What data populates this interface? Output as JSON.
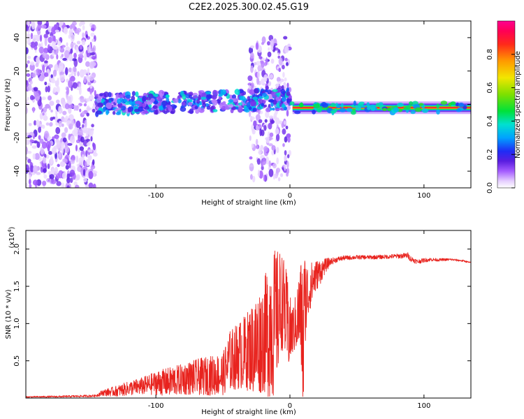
{
  "title": "C2E2.2025.300.02.45.G19",
  "chart_data": [
    {
      "type": "heatmap",
      "panel": "spectrogram",
      "xlabel": "Height of straight line (km)",
      "ylabel": "Frequency (Hz)",
      "xlim": [
        -197,
        135
      ],
      "ylim": [
        -50,
        50
      ],
      "xticks": [
        -100,
        0,
        100
      ],
      "xtick_labels": [
        "-100",
        "0",
        "100"
      ],
      "yticks": [
        -40,
        -20,
        0,
        20,
        40
      ],
      "ytick_labels": [
        "-40",
        "-20",
        "0",
        "20",
        "40"
      ],
      "colorbar": {
        "label": "Normalized spectral amplitude",
        "range": [
          0,
          1
        ],
        "ticks": [
          0.0,
          0.2,
          0.4,
          0.6,
          0.8
        ],
        "tick_labels": [
          "0.0",
          "0.2",
          "0.4",
          "0.6",
          "0.8"
        ]
      },
      "regions": [
        {
          "name": "noise",
          "x_range": [
            -197,
            -145
          ],
          "freq_range": [
            -50,
            50
          ],
          "amplitude": 0.1
        },
        {
          "name": "scattered-band",
          "x_range": [
            -145,
            0
          ],
          "freq_center": 0,
          "freq_halfwidth": 6,
          "amplitude": 0.3
        },
        {
          "name": "spread-bursts",
          "x_range": [
            -30,
            0
          ],
          "freq_range": [
            -45,
            40
          ],
          "amplitude": 0.1
        },
        {
          "name": "stable-tone",
          "x_range": [
            0,
            135
          ],
          "freq_center": -2,
          "freq_halfwidth": 2,
          "amplitude": 0.9
        }
      ]
    },
    {
      "type": "line",
      "panel": "snr",
      "xlabel": "Height of straight line (km)",
      "ylabel": "SNR (10 * v/v)",
      "multiplier_label": "(x10",
      "multiplier_exp": "4",
      "xlim": [
        -197,
        135
      ],
      "ylim": [
        0,
        22500
      ],
      "xticks": [
        -100,
        0,
        100
      ],
      "xtick_labels": [
        "-100",
        "0",
        "100"
      ],
      "yticks": [
        5000,
        10000,
        15000,
        20000
      ],
      "ytick_labels": [
        "0.5",
        "1.0",
        "1.5",
        "2.0"
      ],
      "color": "#e8231e",
      "series": [
        {
          "name": "SNR",
          "x": [
            -197,
            -170,
            -145,
            -140,
            -130,
            -120,
            -110,
            -100,
            -90,
            -80,
            -70,
            -60,
            -50,
            -45,
            -40,
            -35,
            -30,
            -25,
            -20,
            -17,
            -15,
            -12,
            -10,
            -8,
            -6,
            -4,
            -2,
            0,
            2,
            5,
            8,
            10,
            11,
            13,
            15,
            18,
            20,
            23,
            25,
            28,
            30,
            35,
            40,
            50,
            60,
            70,
            80,
            85,
            88,
            90,
            95,
            100,
            105,
            110,
            120,
            130,
            135
          ],
          "base": [
            150,
            200,
            300,
            700,
            900,
            1300,
            1600,
            2000,
            2200,
            2500,
            2800,
            3000,
            3200,
            5000,
            5500,
            6000,
            6500,
            7000,
            8000,
            9000,
            9500,
            10000,
            11000,
            12000,
            13000,
            12000,
            10000,
            9000,
            9000,
            10500,
            12000,
            7000,
            13000,
            14000,
            15000,
            16000,
            16500,
            17000,
            17500,
            18000,
            18300,
            18600,
            18800,
            18900,
            18900,
            18950,
            19050,
            19100,
            19150,
            18700,
            18300,
            18500,
            18600,
            18550,
            18600,
            18400,
            18150
          ],
          "spread": [
            100,
            150,
            200,
            500,
            900,
            1200,
            1500,
            2000,
            2400,
            2600,
            3000,
            3300,
            3500,
            5000,
            5500,
            6000,
            7000,
            8500,
            9000,
            11000,
            12000,
            12500,
            11000,
            10000,
            8000,
            8000,
            8000,
            6000,
            4000,
            5000,
            8000,
            14000,
            8000,
            5000,
            4000,
            3000,
            2500,
            2000,
            1500,
            1000,
            600,
            450,
            400,
            350,
            350,
            350,
            400,
            450,
            500,
            500,
            400,
            350,
            300,
            250,
            200,
            150,
            120
          ]
        }
      ]
    }
  ]
}
